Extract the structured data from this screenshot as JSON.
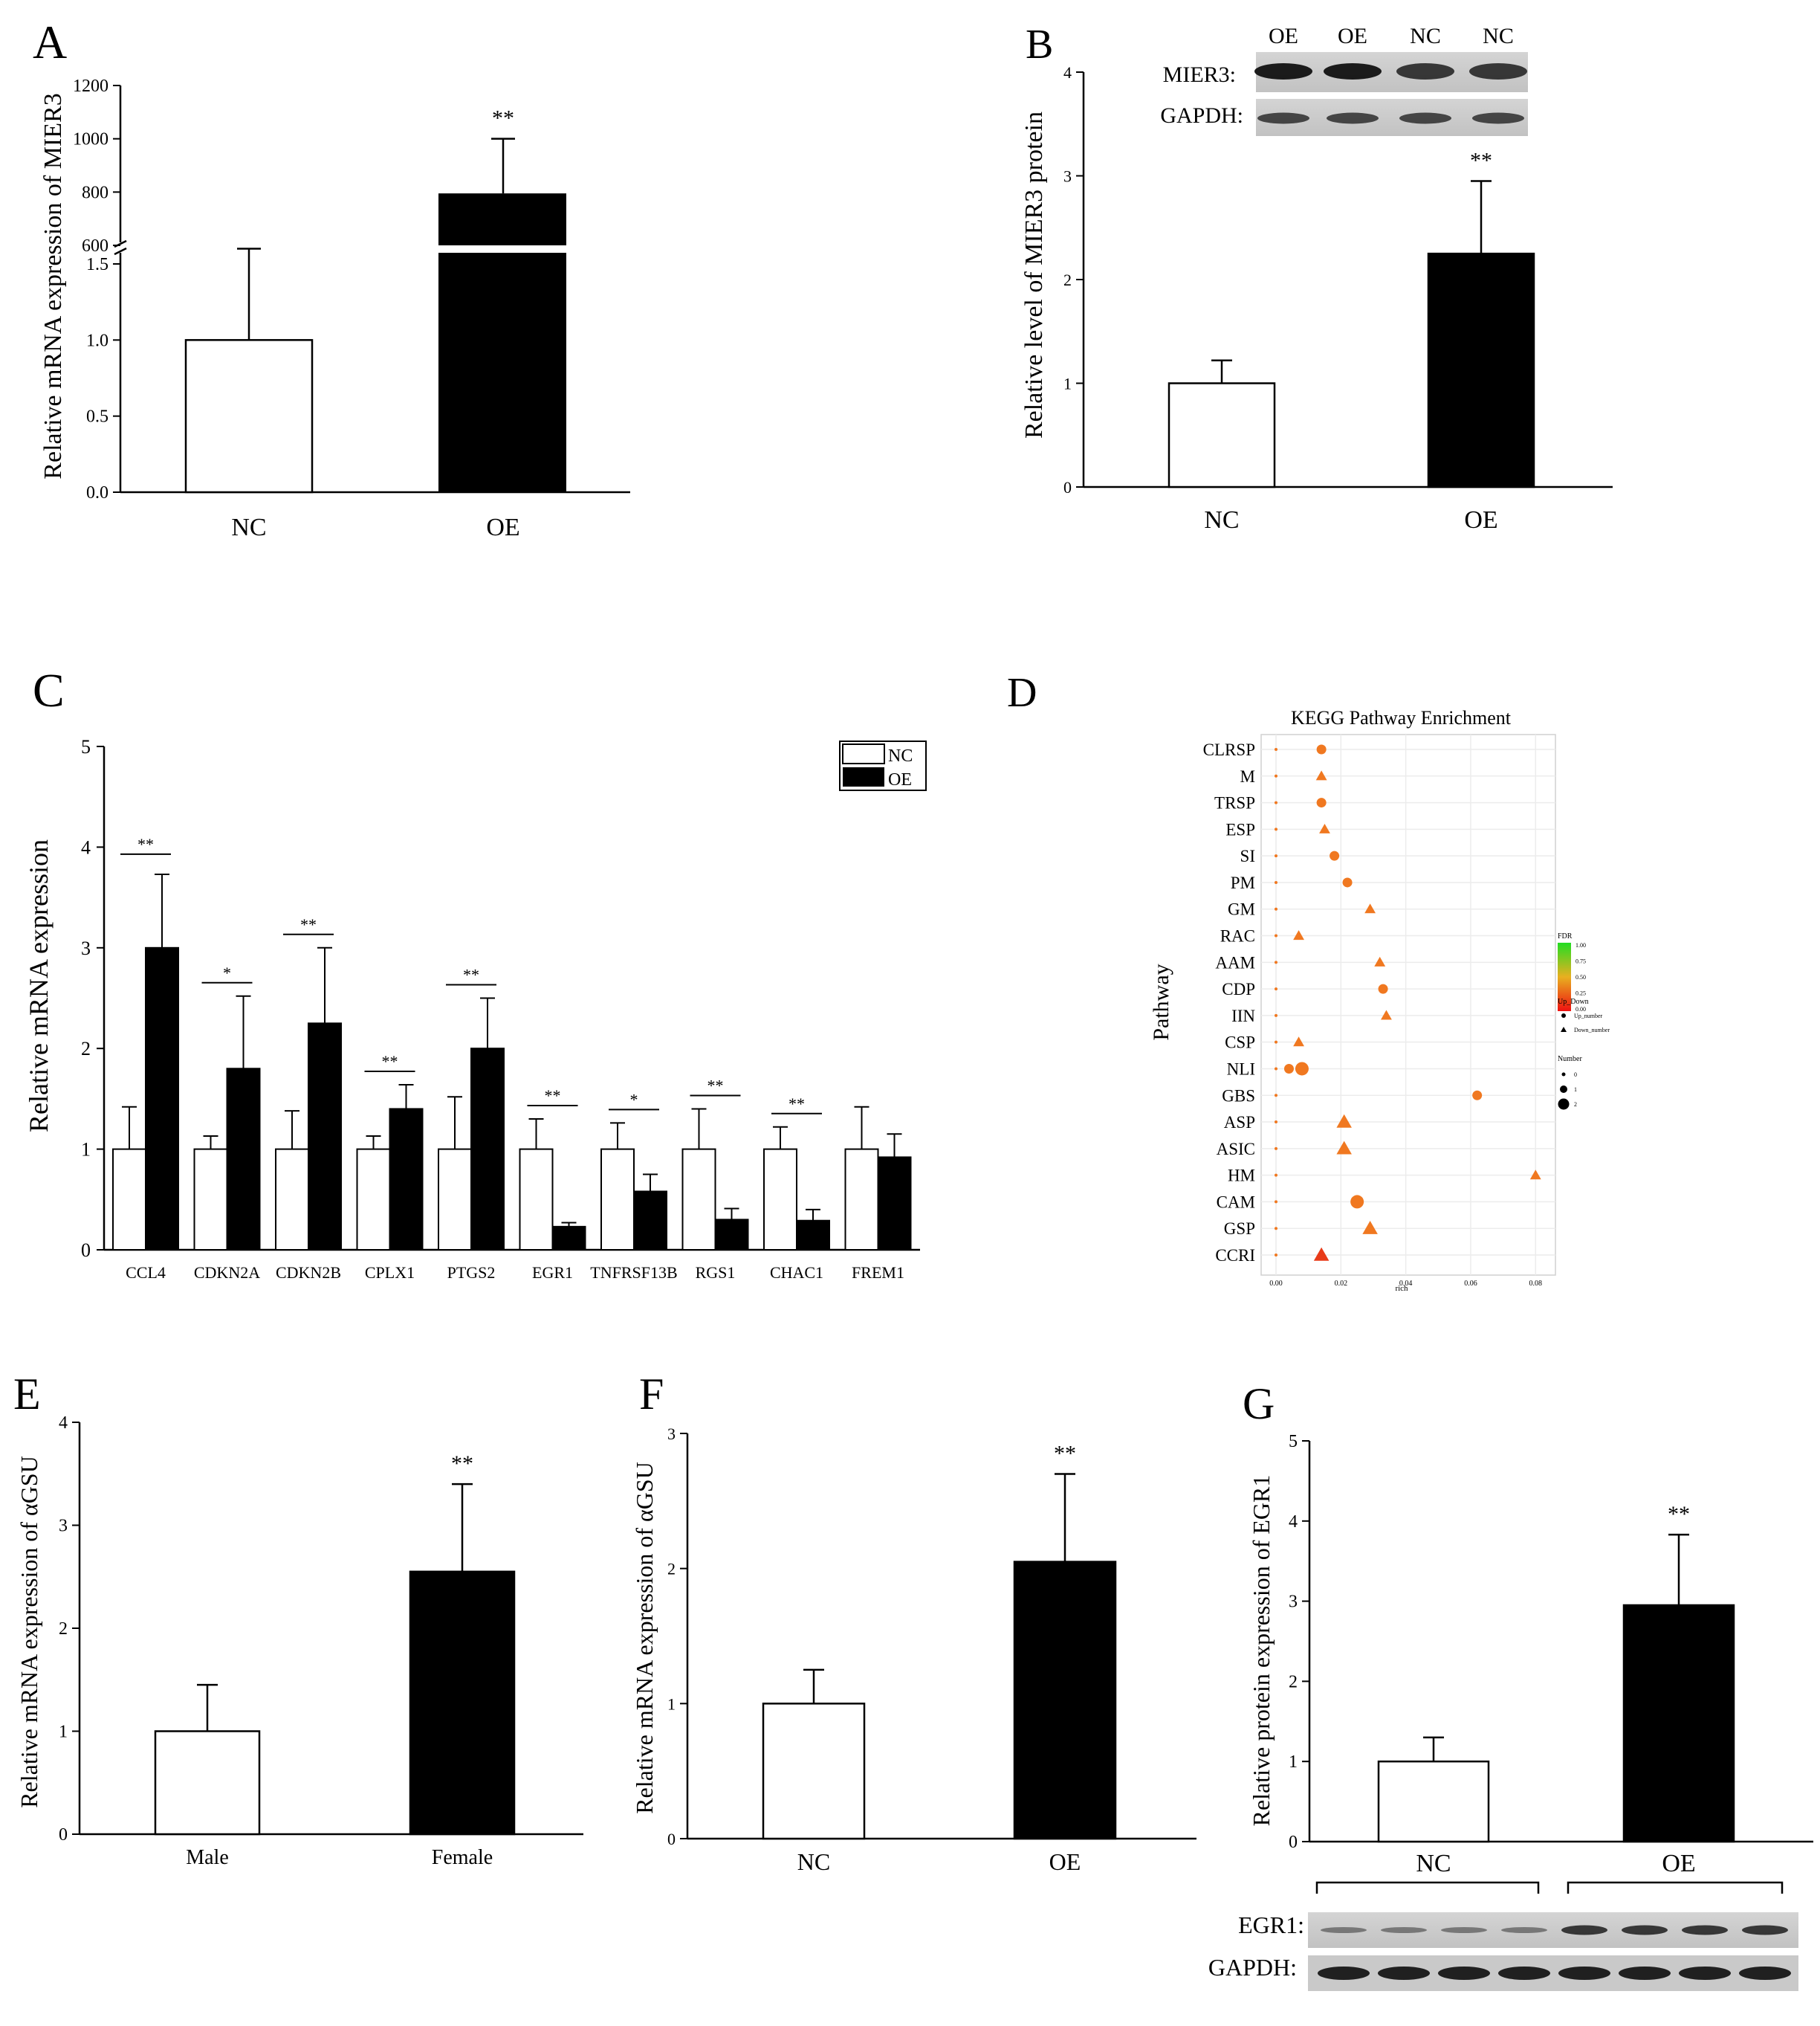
{
  "panelA": {
    "label": "A",
    "chart_data": {
      "type": "bar",
      "categories": [
        "NC",
        "OE"
      ],
      "values": [
        1.0,
        795
      ],
      "errors": [
        0.6,
        205
      ],
      "ylabel": "Relative mRNA expression of MIER3",
      "yticks_lower": [
        "0.0",
        "0.5",
        "1.0",
        "1.5"
      ],
      "yticks_upper": [
        "600",
        "800",
        "1000",
        "1200"
      ],
      "significance": [
        "",
        "**"
      ],
      "axis_break": true
    }
  },
  "panelB": {
    "label": "B",
    "chart_data": {
      "type": "bar",
      "categories": [
        "NC",
        "OE"
      ],
      "values": [
        1.0,
        2.25
      ],
      "errors": [
        0.22,
        0.7
      ],
      "ylabel": "Relative level of MIER3 protein",
      "ylim": [
        0,
        4
      ],
      "yticks": [
        "0",
        "1",
        "2",
        "3",
        "4"
      ],
      "significance": [
        "",
        "**"
      ]
    },
    "blot": {
      "lanes": [
        "OE",
        "OE",
        "NC",
        "NC"
      ],
      "rows": [
        "MIER3:",
        "GAPDH:"
      ]
    }
  },
  "panelC": {
    "label": "C",
    "chart_data": {
      "type": "bar",
      "categories": [
        "CCL4",
        "CDKN2A",
        "CDKN2B",
        "CPLX1",
        "PTGS2",
        "EGR1",
        "TNFRSF13B",
        "RGS1",
        "CHAC1",
        "FREM1"
      ],
      "series": [
        {
          "name": "NC",
          "values": [
            1,
            1,
            1,
            1,
            1,
            1,
            1,
            1,
            1,
            1
          ],
          "errors": [
            0.42,
            0.13,
            0.38,
            0.13,
            0.52,
            0.3,
            0.26,
            0.4,
            0.22,
            0.42
          ]
        },
        {
          "name": "OE",
          "values": [
            3.0,
            1.8,
            2.25,
            1.4,
            2.0,
            0.23,
            0.58,
            0.3,
            0.29,
            0.92
          ],
          "errors": [
            0.73,
            0.72,
            0.75,
            0.24,
            0.5,
            0.04,
            0.17,
            0.11,
            0.11,
            0.23
          ]
        }
      ],
      "significance": [
        "**",
        "*",
        "**",
        "**",
        "**",
        "**",
        "*",
        "**",
        "**",
        ""
      ],
      "ylabel": "Relative mRNA expression",
      "ylim": [
        0,
        5
      ],
      "yticks": [
        "0",
        "1",
        "2",
        "3",
        "4",
        "5"
      ],
      "legend": [
        "NC",
        "OE"
      ]
    }
  },
  "panelD": {
    "label": "D",
    "chart_data": {
      "type": "scatter",
      "title": "KEGG Pathway Enrichment",
      "ylabel": "Pathway",
      "xlabel": "rich",
      "xticks": [
        "0.00",
        "0.02",
        "0.04",
        "0.06",
        "0.08"
      ],
      "xlim": [
        0,
        0.082
      ],
      "pathways": [
        "CLRSP",
        "M",
        "TRSP",
        "ESP",
        "SI",
        "PM",
        "GM",
        "RAC",
        "AAM",
        "CDP",
        "IIN",
        "CSP",
        "NLI",
        "GBS",
        "ASP",
        "ASIC",
        "HM",
        "CAM",
        "GSP",
        "CCRI"
      ],
      "points": [
        {
          "pathway": "CLRSP",
          "rich": 0.014,
          "shape": "circle",
          "number": 1
        },
        {
          "pathway": "M",
          "rich": 0.014,
          "shape": "triangle",
          "number": 1
        },
        {
          "pathway": "TRSP",
          "rich": 0.014,
          "shape": "circle",
          "number": 1
        },
        {
          "pathway": "ESP",
          "rich": 0.015,
          "shape": "triangle",
          "number": 1
        },
        {
          "pathway": "SI",
          "rich": 0.018,
          "shape": "circle",
          "number": 1
        },
        {
          "pathway": "PM",
          "rich": 0.022,
          "shape": "circle",
          "number": 1
        },
        {
          "pathway": "GM",
          "rich": 0.029,
          "shape": "triangle",
          "number": 1
        },
        {
          "pathway": "RAC",
          "rich": 0.007,
          "shape": "triangle",
          "number": 1
        },
        {
          "pathway": "AAM",
          "rich": 0.032,
          "shape": "triangle",
          "number": 1
        },
        {
          "pathway": "CDP",
          "rich": 0.033,
          "shape": "circle",
          "number": 1
        },
        {
          "pathway": "IIN",
          "rich": 0.034,
          "shape": "triangle",
          "number": 1
        },
        {
          "pathway": "CSP",
          "rich": 0.007,
          "shape": "triangle",
          "number": 1
        },
        {
          "pathway": "NLI",
          "rich": 0.004,
          "shape": "circle",
          "number": 1
        },
        {
          "pathway": "NLI",
          "rich": 0.008,
          "shape": "circle",
          "number": 2
        },
        {
          "pathway": "GBS",
          "rich": 0.062,
          "shape": "circle",
          "number": 1
        },
        {
          "pathway": "ASP",
          "rich": 0.021,
          "shape": "triangle",
          "number": 2
        },
        {
          "pathway": "ASIC",
          "rich": 0.021,
          "shape": "triangle",
          "number": 2
        },
        {
          "pathway": "HM",
          "rich": 0.08,
          "shape": "triangle",
          "number": 1
        },
        {
          "pathway": "CAM",
          "rich": 0.025,
          "shape": "circle",
          "number": 2
        },
        {
          "pathway": "GSP",
          "rich": 0.029,
          "shape": "triangle",
          "number": 2
        },
        {
          "pathway": "CCRI",
          "rich": 0.014,
          "shape": "triangle",
          "number": 2
        }
      ],
      "legend": {
        "fdr_title": "FDR",
        "fdr_ticks": [
          "1.00",
          "0.75",
          "0.50",
          "0.25",
          "0.00"
        ],
        "updown_title": "Up_Down",
        "updown_items": [
          "Up_number",
          "Down_number"
        ],
        "number_title": "Number",
        "number_items": [
          "0",
          "1",
          "2"
        ]
      }
    }
  },
  "panelE": {
    "label": "E",
    "chart_data": {
      "type": "bar",
      "categories": [
        "Male",
        "Female"
      ],
      "values": [
        1.0,
        2.55
      ],
      "errors": [
        0.45,
        0.85
      ],
      "ylabel": "Relative mRNA expression of αGSU",
      "ylim": [
        0,
        4
      ],
      "yticks": [
        "0",
        "1",
        "2",
        "3",
        "4"
      ],
      "significance": [
        "",
        "**"
      ]
    }
  },
  "panelF": {
    "label": "F",
    "chart_data": {
      "type": "bar",
      "categories": [
        "NC",
        "OE"
      ],
      "values": [
        1.0,
        2.05
      ],
      "errors": [
        0.25,
        0.65
      ],
      "ylabel": "Relative mRNA expression of αGSU",
      "ylim": [
        0,
        3
      ],
      "yticks": [
        "0",
        "1",
        "2",
        "3"
      ],
      "significance": [
        "",
        "**"
      ]
    }
  },
  "panelG": {
    "label": "G",
    "chart_data": {
      "type": "bar",
      "categories": [
        "NC",
        "OE"
      ],
      "values": [
        1.0,
        2.95
      ],
      "errors": [
        0.3,
        0.88
      ],
      "ylabel": "Relative protein expression of EGR1",
      "ylim": [
        0,
        5
      ],
      "yticks": [
        "0",
        "1",
        "2",
        "3",
        "4",
        "5"
      ],
      "significance": [
        "",
        "**"
      ]
    },
    "blot": {
      "groups": [
        "NC",
        "OE"
      ],
      "rows": [
        "EGR1:",
        "GAPDH:"
      ]
    }
  }
}
